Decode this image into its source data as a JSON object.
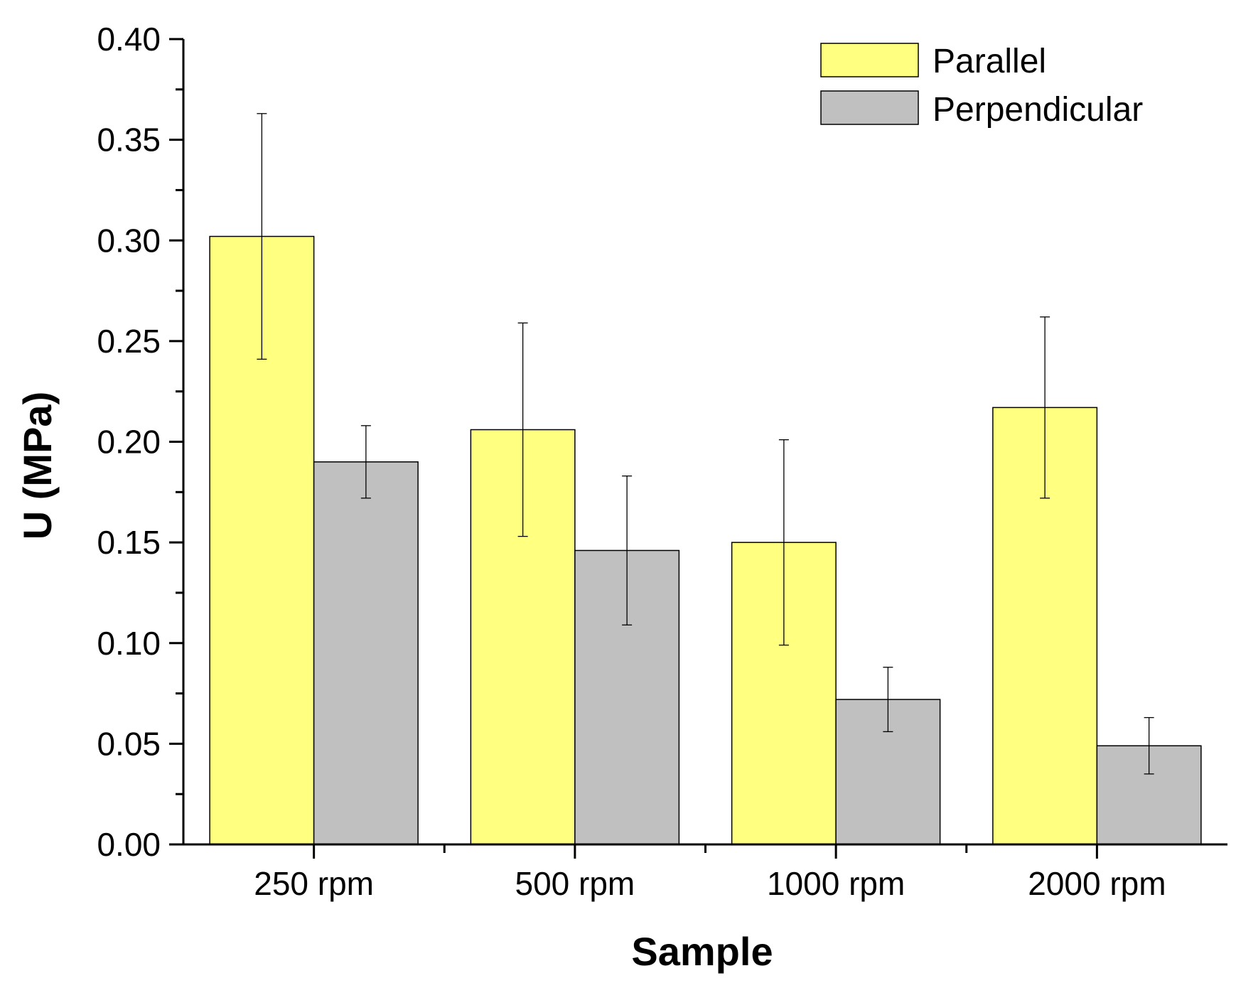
{
  "chart_data": {
    "type": "bar",
    "title": "",
    "xlabel": "Sample",
    "ylabel": "U (MPa)",
    "ylim": [
      0,
      0.4
    ],
    "yticks": [
      "0.00",
      "0.05",
      "0.10",
      "0.15",
      "0.20",
      "0.25",
      "0.30",
      "0.35",
      "0.40"
    ],
    "categories": [
      "250 rpm",
      "500 rpm",
      "1000 rpm",
      "2000 rpm"
    ],
    "series": [
      {
        "name": "Parallel",
        "color": "#ffff80",
        "values": [
          0.302,
          0.206,
          0.15,
          0.217
        ],
        "errors": [
          0.061,
          0.053,
          0.051,
          0.045
        ]
      },
      {
        "name": "Perpendicular",
        "color": "#c0c0c0",
        "values": [
          0.19,
          0.146,
          0.072,
          0.049
        ],
        "errors": [
          0.018,
          0.037,
          0.016,
          0.014
        ]
      }
    ],
    "legend_position": "top-right",
    "grid": false
  }
}
